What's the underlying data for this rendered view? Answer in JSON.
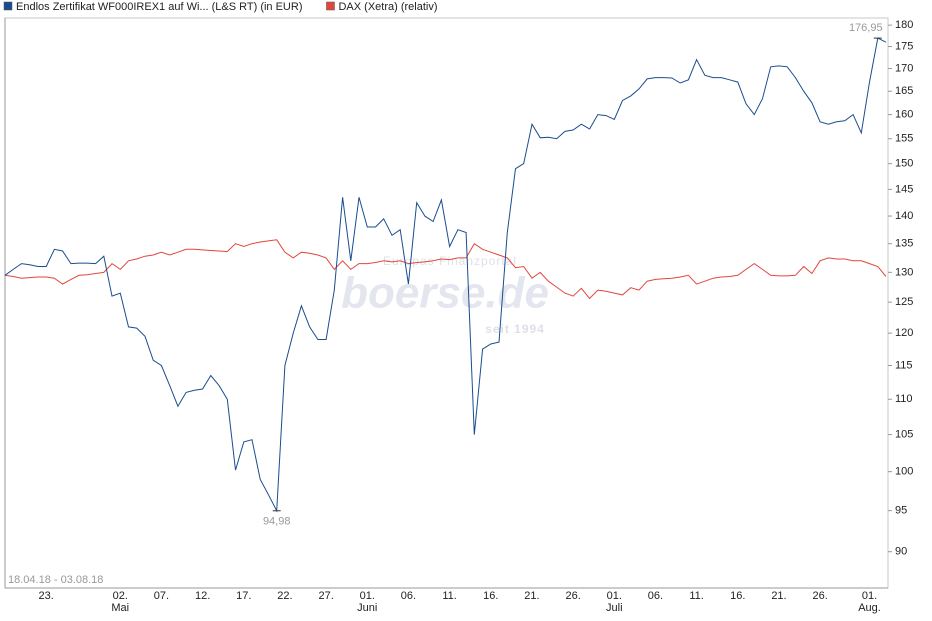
{
  "chart_data": {
    "type": "line",
    "date_range": "18.04.18 - 03.08.18",
    "watermark": {
      "subtitle": "Europas Finanzportal",
      "brand": "boerse.de",
      "since": "seit 1994"
    },
    "log_scale": true,
    "ylim": [
      85.8,
      181.7
    ],
    "yticks": [
      90,
      95,
      100,
      105,
      110,
      115,
      120,
      125,
      130,
      135,
      140,
      145,
      150,
      155,
      160,
      165,
      170,
      175,
      180
    ],
    "categories": [
      null,
      null,
      null,
      null,
      null,
      "23.",
      null,
      null,
      null,
      null,
      null,
      null,
      null,
      null,
      "02.",
      null,
      null,
      null,
      null,
      "07.",
      null,
      null,
      null,
      null,
      "12.",
      null,
      null,
      null,
      null,
      "17.",
      null,
      null,
      null,
      null,
      "22.",
      null,
      null,
      null,
      null,
      "27.",
      null,
      null,
      null,
      null,
      "01.",
      null,
      null,
      null,
      null,
      "06.",
      null,
      null,
      null,
      null,
      "11.",
      null,
      null,
      null,
      null,
      "16.",
      null,
      null,
      null,
      null,
      "21.",
      null,
      null,
      null,
      null,
      "26.",
      null,
      null,
      null,
      null,
      "01.",
      null,
      null,
      null,
      null,
      "06.",
      null,
      null,
      null,
      null,
      "11.",
      null,
      null,
      null,
      null,
      "16.",
      null,
      null,
      null,
      null,
      "21.",
      null,
      null,
      null,
      null,
      "26.",
      null,
      null,
      null,
      null,
      null,
      "01.",
      null,
      null
    ],
    "months": [
      null,
      null,
      null,
      null,
      null,
      null,
      null,
      null,
      null,
      null,
      null,
      null,
      null,
      null,
      "Mai",
      null,
      null,
      null,
      null,
      null,
      null,
      null,
      null,
      null,
      null,
      null,
      null,
      null,
      null,
      null,
      null,
      null,
      null,
      null,
      null,
      null,
      null,
      null,
      null,
      null,
      null,
      null,
      null,
      null,
      "Juni",
      null,
      null,
      null,
      null,
      null,
      null,
      null,
      null,
      null,
      null,
      null,
      null,
      null,
      null,
      null,
      null,
      null,
      null,
      null,
      null,
      null,
      null,
      null,
      null,
      null,
      null,
      null,
      null,
      null,
      "Juli",
      null,
      null,
      null,
      null,
      null,
      null,
      null,
      null,
      null,
      null,
      null,
      null,
      null,
      null,
      null,
      null,
      null,
      null,
      null,
      null,
      null,
      null,
      null,
      null,
      null,
      null,
      null,
      null,
      null,
      null,
      "Aug.",
      null,
      null
    ],
    "series": [
      {
        "name": "Endlos Zertifikat WF000IREX1 auf Wi... (L&S RT) (in EUR)",
        "color": "#1a4d8f",
        "values": [
          129.5,
          130.5,
          131.5,
          131.3,
          131,
          131,
          134,
          133.7,
          131.5,
          131.6,
          131.6,
          131.5,
          132.8,
          126,
          126.5,
          121,
          120.8,
          119.5,
          115.8,
          115,
          112,
          109,
          111,
          111.3,
          111.5,
          113.5,
          112,
          110,
          100.2,
          104,
          104.3,
          99,
          97,
          94.98,
          115,
          120,
          124.4,
          121,
          119,
          119,
          127,
          143.5,
          132,
          143.5,
          138,
          138,
          139.5,
          136.5,
          137.5,
          128,
          142.5,
          140,
          139,
          143,
          134.5,
          137.5,
          137,
          105,
          117.5,
          118.3,
          118.6,
          137,
          149,
          150,
          158,
          155.2,
          155.3,
          155,
          156.5,
          156.8,
          158,
          157,
          160,
          159.8,
          159,
          163,
          164,
          165.5,
          167.7,
          168,
          168,
          167.9,
          166.8,
          167.5,
          172,
          168.5,
          168,
          168,
          167.5,
          167,
          162.3,
          160,
          163.4,
          170.4,
          170.6,
          170.4,
          168,
          165,
          162.5,
          158.5,
          158,
          158.5,
          158.7,
          160,
          156.2,
          167,
          176.95,
          176
        ],
        "value_labels": [
          null,
          null,
          null,
          null,
          null,
          null,
          null,
          null,
          null,
          null,
          null,
          null,
          null,
          null,
          null,
          null,
          null,
          null,
          null,
          null,
          null,
          null,
          null,
          null,
          null,
          null,
          null,
          null,
          null,
          null,
          null,
          null,
          null,
          "94,98",
          null,
          null,
          null,
          null,
          null,
          null,
          null,
          null,
          null,
          null,
          null,
          null,
          null,
          null,
          null,
          null,
          null,
          null,
          null,
          null,
          null,
          null,
          null,
          null,
          null,
          null,
          null,
          null,
          null,
          null,
          null,
          null,
          null,
          null,
          null,
          null,
          null,
          null,
          null,
          null,
          null,
          null,
          null,
          null,
          null,
          null,
          null,
          null,
          null,
          null,
          null,
          null,
          null,
          null,
          null,
          null,
          null,
          null,
          null,
          null,
          null,
          null,
          null,
          null,
          null,
          null,
          null,
          null,
          null,
          null,
          null,
          null,
          "176,95",
          null
        ]
      },
      {
        "name": "DAX (Xetra) (relativ)",
        "color": "#e0473c",
        "values": [
          129.5,
          129.3,
          129,
          129.1,
          129.2,
          129.2,
          129,
          128,
          128.8,
          129.5,
          129.6,
          129.8,
          130,
          131.5,
          130.5,
          132,
          132.3,
          132.8,
          133,
          133.5,
          133,
          133.5,
          134,
          134,
          133.9,
          133.8,
          133.7,
          133.6,
          135,
          134.5,
          135,
          135.3,
          135.5,
          135.7,
          133.5,
          132.5,
          133.5,
          133.3,
          133,
          132.5,
          130.5,
          132,
          130.5,
          131.5,
          131.5,
          131.7,
          132,
          131.8,
          132,
          131.5,
          131.7,
          131.8,
          132,
          132.3,
          132.2,
          132.5,
          132.5,
          135,
          134,
          133.5,
          133,
          132.5,
          130.8,
          131,
          129,
          130,
          128.5,
          127.5,
          126.5,
          126,
          127.3,
          125.6,
          127,
          126.8,
          126.5,
          126.2,
          127.4,
          127,
          128.5,
          128.8,
          128.9,
          129,
          129.2,
          129.5,
          128,
          128.5,
          129,
          129.2,
          129.3,
          129.5,
          130.5,
          131.5,
          130.5,
          129.5,
          129.4,
          129.4,
          129.5,
          131,
          129.8,
          132,
          132.5,
          132.3,
          132.3,
          132,
          132,
          131.5,
          131,
          129.3
        ]
      }
    ]
  }
}
